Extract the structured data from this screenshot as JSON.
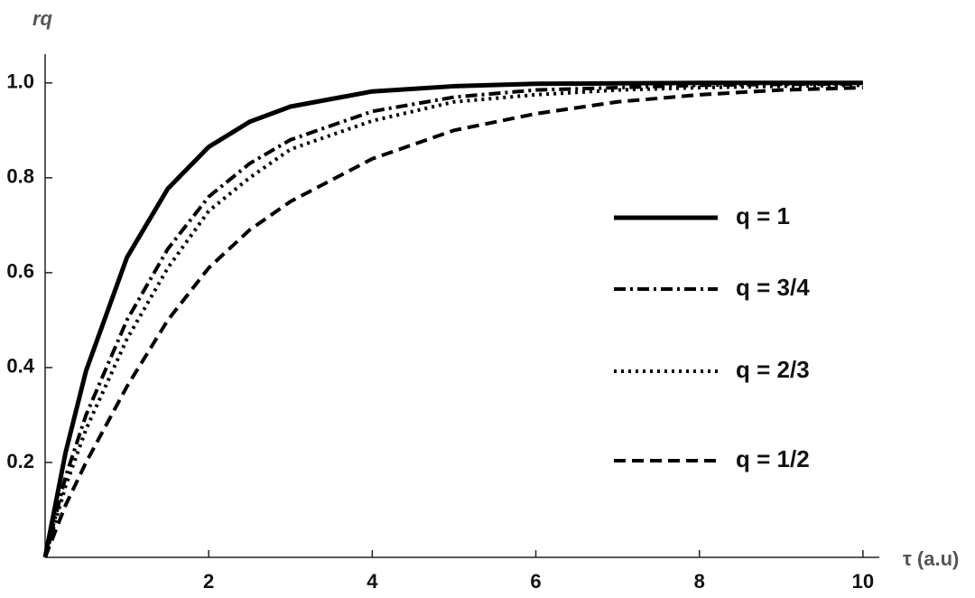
{
  "chart_data": {
    "type": "line",
    "x_label": "τ (a.u)",
    "y_label": "rq",
    "x": [
      0,
      0.25,
      0.5,
      1,
      1.5,
      2,
      2.5,
      3,
      4,
      5,
      6,
      7,
      8,
      9,
      10
    ],
    "series": [
      {
        "name": "q = 1",
        "color": "#000000",
        "dash": "solid",
        "values": [
          0,
          0.221,
          0.393,
          0.632,
          0.777,
          0.865,
          0.918,
          0.95,
          0.982,
          0.993,
          0.998,
          0.999,
          1,
          1,
          1
        ]
      },
      {
        "name": "q = 3/4",
        "color": "#000000",
        "dash": "dashdot",
        "values": [
          0,
          0.17,
          0.3,
          0.5,
          0.65,
          0.76,
          0.83,
          0.88,
          0.94,
          0.97,
          0.985,
          0.99,
          0.995,
          0.997,
          0.998
        ]
      },
      {
        "name": "q = 2/3",
        "color": "#000000",
        "dash": "dotted",
        "values": [
          0,
          0.15,
          0.27,
          0.46,
          0.61,
          0.73,
          0.8,
          0.86,
          0.92,
          0.96,
          0.975,
          0.985,
          0.99,
          0.993,
          0.995
        ]
      },
      {
        "name": "q = 1/2",
        "color": "#000000",
        "dash": "dashed",
        "values": [
          0,
          0.11,
          0.2,
          0.36,
          0.5,
          0.61,
          0.69,
          0.75,
          0.84,
          0.9,
          0.935,
          0.96,
          0.975,
          0.985,
          0.99
        ]
      }
    ],
    "xlim": [
      0,
      10.2
    ],
    "ylim": [
      0,
      1.03
    ],
    "xticks": [
      2,
      4,
      6,
      8,
      10
    ],
    "yticks": [
      0.2,
      0.4,
      0.6,
      0.8,
      {
        "value": 1,
        "label": "1.0"
      }
    ],
    "legend": "right"
  }
}
